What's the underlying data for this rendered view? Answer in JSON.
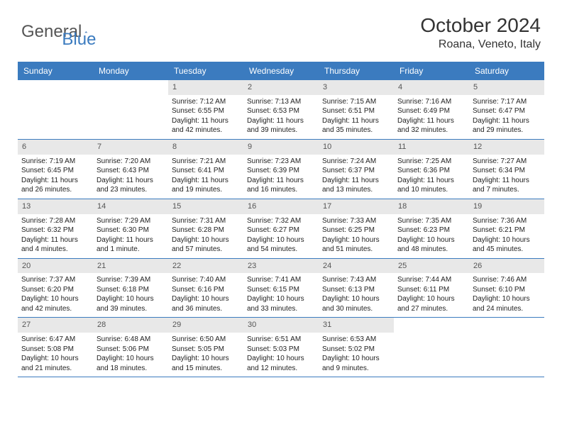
{
  "brand": {
    "part1": "General",
    "part2": "Blue",
    "color_general": "#555555",
    "color_blue": "#3b7bbf"
  },
  "title": "October 2024",
  "location": "Roana, Veneto, Italy",
  "colors": {
    "header_bg": "#3b7bbf",
    "header_text": "#ffffff",
    "daynum_bg": "#e8e8e8",
    "daynum_text": "#555555",
    "border": "#3b7bbf",
    "body_text": "#222222"
  },
  "day_labels": [
    "Sunday",
    "Monday",
    "Tuesday",
    "Wednesday",
    "Thursday",
    "Friday",
    "Saturday"
  ],
  "weeks": [
    [
      {
        "n": "",
        "lines": []
      },
      {
        "n": "",
        "lines": []
      },
      {
        "n": "1",
        "lines": [
          "Sunrise: 7:12 AM",
          "Sunset: 6:55 PM",
          "Daylight: 11 hours and 42 minutes."
        ]
      },
      {
        "n": "2",
        "lines": [
          "Sunrise: 7:13 AM",
          "Sunset: 6:53 PM",
          "Daylight: 11 hours and 39 minutes."
        ]
      },
      {
        "n": "3",
        "lines": [
          "Sunrise: 7:15 AM",
          "Sunset: 6:51 PM",
          "Daylight: 11 hours and 35 minutes."
        ]
      },
      {
        "n": "4",
        "lines": [
          "Sunrise: 7:16 AM",
          "Sunset: 6:49 PM",
          "Daylight: 11 hours and 32 minutes."
        ]
      },
      {
        "n": "5",
        "lines": [
          "Sunrise: 7:17 AM",
          "Sunset: 6:47 PM",
          "Daylight: 11 hours and 29 minutes."
        ]
      }
    ],
    [
      {
        "n": "6",
        "lines": [
          "Sunrise: 7:19 AM",
          "Sunset: 6:45 PM",
          "Daylight: 11 hours and 26 minutes."
        ]
      },
      {
        "n": "7",
        "lines": [
          "Sunrise: 7:20 AM",
          "Sunset: 6:43 PM",
          "Daylight: 11 hours and 23 minutes."
        ]
      },
      {
        "n": "8",
        "lines": [
          "Sunrise: 7:21 AM",
          "Sunset: 6:41 PM",
          "Daylight: 11 hours and 19 minutes."
        ]
      },
      {
        "n": "9",
        "lines": [
          "Sunrise: 7:23 AM",
          "Sunset: 6:39 PM",
          "Daylight: 11 hours and 16 minutes."
        ]
      },
      {
        "n": "10",
        "lines": [
          "Sunrise: 7:24 AM",
          "Sunset: 6:37 PM",
          "Daylight: 11 hours and 13 minutes."
        ]
      },
      {
        "n": "11",
        "lines": [
          "Sunrise: 7:25 AM",
          "Sunset: 6:36 PM",
          "Daylight: 11 hours and 10 minutes."
        ]
      },
      {
        "n": "12",
        "lines": [
          "Sunrise: 7:27 AM",
          "Sunset: 6:34 PM",
          "Daylight: 11 hours and 7 minutes."
        ]
      }
    ],
    [
      {
        "n": "13",
        "lines": [
          "Sunrise: 7:28 AM",
          "Sunset: 6:32 PM",
          "Daylight: 11 hours and 4 minutes."
        ]
      },
      {
        "n": "14",
        "lines": [
          "Sunrise: 7:29 AM",
          "Sunset: 6:30 PM",
          "Daylight: 11 hours and 1 minute."
        ]
      },
      {
        "n": "15",
        "lines": [
          "Sunrise: 7:31 AM",
          "Sunset: 6:28 PM",
          "Daylight: 10 hours and 57 minutes."
        ]
      },
      {
        "n": "16",
        "lines": [
          "Sunrise: 7:32 AM",
          "Sunset: 6:27 PM",
          "Daylight: 10 hours and 54 minutes."
        ]
      },
      {
        "n": "17",
        "lines": [
          "Sunrise: 7:33 AM",
          "Sunset: 6:25 PM",
          "Daylight: 10 hours and 51 minutes."
        ]
      },
      {
        "n": "18",
        "lines": [
          "Sunrise: 7:35 AM",
          "Sunset: 6:23 PM",
          "Daylight: 10 hours and 48 minutes."
        ]
      },
      {
        "n": "19",
        "lines": [
          "Sunrise: 7:36 AM",
          "Sunset: 6:21 PM",
          "Daylight: 10 hours and 45 minutes."
        ]
      }
    ],
    [
      {
        "n": "20",
        "lines": [
          "Sunrise: 7:37 AM",
          "Sunset: 6:20 PM",
          "Daylight: 10 hours and 42 minutes."
        ]
      },
      {
        "n": "21",
        "lines": [
          "Sunrise: 7:39 AM",
          "Sunset: 6:18 PM",
          "Daylight: 10 hours and 39 minutes."
        ]
      },
      {
        "n": "22",
        "lines": [
          "Sunrise: 7:40 AM",
          "Sunset: 6:16 PM",
          "Daylight: 10 hours and 36 minutes."
        ]
      },
      {
        "n": "23",
        "lines": [
          "Sunrise: 7:41 AM",
          "Sunset: 6:15 PM",
          "Daylight: 10 hours and 33 minutes."
        ]
      },
      {
        "n": "24",
        "lines": [
          "Sunrise: 7:43 AM",
          "Sunset: 6:13 PM",
          "Daylight: 10 hours and 30 minutes."
        ]
      },
      {
        "n": "25",
        "lines": [
          "Sunrise: 7:44 AM",
          "Sunset: 6:11 PM",
          "Daylight: 10 hours and 27 minutes."
        ]
      },
      {
        "n": "26",
        "lines": [
          "Sunrise: 7:46 AM",
          "Sunset: 6:10 PM",
          "Daylight: 10 hours and 24 minutes."
        ]
      }
    ],
    [
      {
        "n": "27",
        "lines": [
          "Sunrise: 6:47 AM",
          "Sunset: 5:08 PM",
          "Daylight: 10 hours and 21 minutes."
        ]
      },
      {
        "n": "28",
        "lines": [
          "Sunrise: 6:48 AM",
          "Sunset: 5:06 PM",
          "Daylight: 10 hours and 18 minutes."
        ]
      },
      {
        "n": "29",
        "lines": [
          "Sunrise: 6:50 AM",
          "Sunset: 5:05 PM",
          "Daylight: 10 hours and 15 minutes."
        ]
      },
      {
        "n": "30",
        "lines": [
          "Sunrise: 6:51 AM",
          "Sunset: 5:03 PM",
          "Daylight: 10 hours and 12 minutes."
        ]
      },
      {
        "n": "31",
        "lines": [
          "Sunrise: 6:53 AM",
          "Sunset: 5:02 PM",
          "Daylight: 10 hours and 9 minutes."
        ]
      },
      {
        "n": "",
        "lines": []
      },
      {
        "n": "",
        "lines": []
      }
    ]
  ]
}
